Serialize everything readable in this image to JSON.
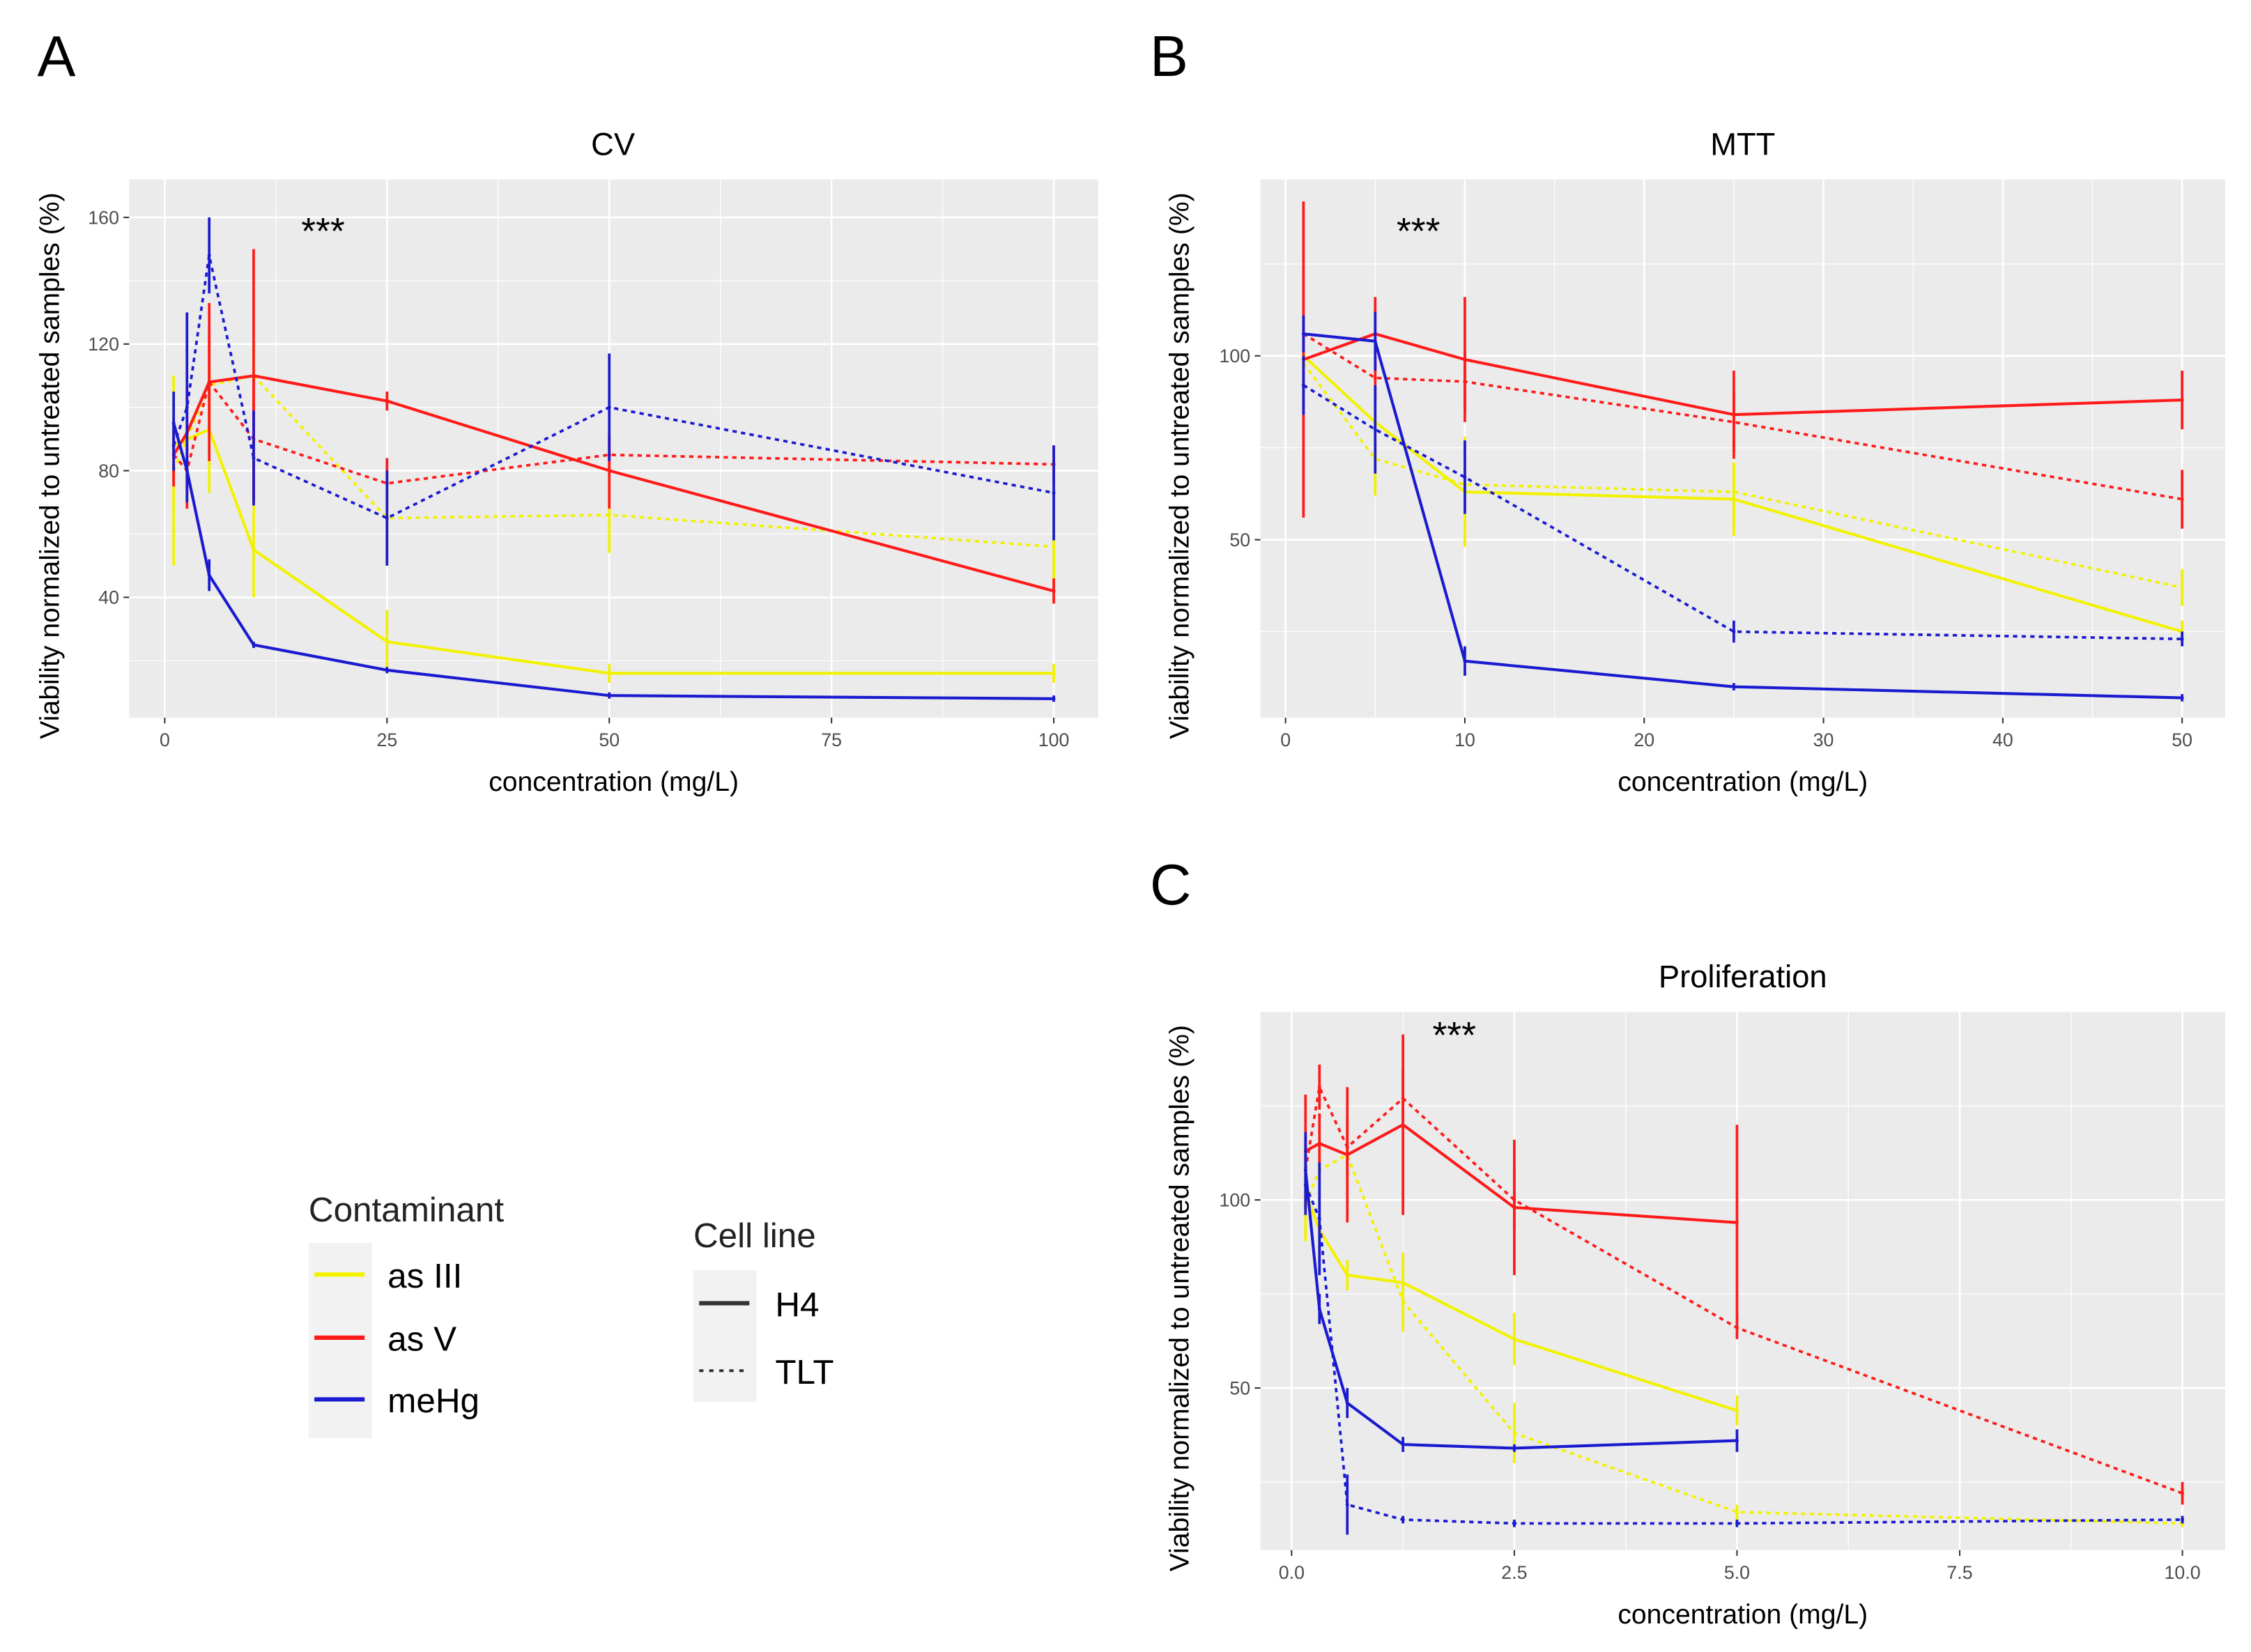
{
  "panel_labels": [
    "A",
    "B",
    "C"
  ],
  "y_axis_label": "Viability normalized to untreated samples (%)",
  "x_axis_label": "concentration (mg/L)",
  "significance": "***",
  "colors": {
    "as III": "#F2F200",
    "as V": "#FF1A1A",
    "meHg": "#1A1AD0",
    "panel_bg": "#EBEBEB",
    "grid": "#FFFFFF"
  },
  "legend": {
    "contaminant_title": "Contaminant",
    "contaminants": [
      "as III",
      "as V",
      "meHg"
    ],
    "cell_line_title": "Cell line",
    "cell_lines": [
      {
        "name": "H4",
        "style": "solid"
      },
      {
        "name": "TLT",
        "style": "dotted"
      }
    ]
  },
  "chart_data": [
    {
      "type": "line",
      "panel": "A",
      "title": "CV",
      "xlabel": "concentration (mg/L)",
      "ylabel": "Viability normalized to untreated samples (%)",
      "xlim": [
        -4,
        105
      ],
      "ylim": [
        2,
        172
      ],
      "xticks": [
        0,
        25,
        50,
        75,
        100
      ],
      "xtick_labels": [
        "0",
        "25",
        "50",
        "75",
        "100"
      ],
      "yticks": [
        40,
        80,
        120,
        160
      ],
      "ytick_labels": [
        "40",
        "80",
        "120",
        "160"
      ],
      "grid": true,
      "annotation": "***",
      "series": [
        {
          "contaminant": "as III",
          "cell_line": "H4",
          "x": [
            1,
            5,
            10,
            25,
            50,
            100
          ],
          "y": [
            88,
            93,
            55,
            26,
            16,
            16
          ],
          "err": [
            20,
            20,
            15,
            10,
            3,
            3
          ]
        },
        {
          "contaminant": "as III",
          "cell_line": "TLT",
          "x": [
            1,
            5,
            10,
            25,
            50,
            100
          ],
          "y": [
            80,
            107,
            110,
            65,
            66,
            56
          ],
          "err": [
            30,
            15,
            10,
            10,
            12,
            12
          ]
        },
        {
          "contaminant": "as V",
          "cell_line": "H4",
          "x": [
            1,
            2.5,
            5,
            10,
            25,
            50,
            100
          ],
          "y": [
            85,
            92,
            108,
            110,
            102,
            80,
            42
          ],
          "err": [
            10,
            15,
            25,
            40,
            3,
            12,
            4
          ]
        },
        {
          "contaminant": "as V",
          "cell_line": "TLT",
          "x": [
            1,
            2.5,
            5,
            10,
            25,
            50,
            100
          ],
          "y": [
            85,
            80,
            108,
            90,
            76,
            85,
            82
          ],
          "err": [
            8,
            12,
            15,
            20,
            8,
            6,
            6
          ]
        },
        {
          "contaminant": "meHg",
          "cell_line": "H4",
          "x": [
            1,
            2.5,
            5,
            10,
            25,
            50,
            100
          ],
          "y": [
            95,
            80,
            47,
            25,
            17,
            9,
            8
          ],
          "err": [
            10,
            5,
            5,
            1,
            1,
            1,
            1
          ]
        },
        {
          "contaminant": "meHg",
          "cell_line": "TLT",
          "x": [
            1,
            2.5,
            5,
            10,
            25,
            50,
            100
          ],
          "y": [
            88,
            100,
            148,
            84,
            65,
            100,
            73
          ],
          "err": [
            8,
            30,
            12,
            15,
            15,
            17,
            15
          ]
        }
      ]
    },
    {
      "type": "line",
      "panel": "B",
      "title": "MTT",
      "xlabel": "concentration (mg/L)",
      "ylabel": "Viability normalized to untreated samples (%)",
      "xlim": [
        -1.4,
        52.4
      ],
      "ylim": [
        1.6,
        148
      ],
      "xticks": [
        0,
        10,
        20,
        30,
        40,
        50
      ],
      "xtick_labels": [
        "0",
        "10",
        "20",
        "30",
        "40",
        "50"
      ],
      "yticks": [
        50,
        100
      ],
      "ytick_labels": [
        "50",
        "100"
      ],
      "grid": true,
      "annotation": "***",
      "series": [
        {
          "contaminant": "as III",
          "cell_line": "H4",
          "x": [
            1,
            5,
            10,
            25,
            50
          ],
          "y": [
            100,
            82,
            63,
            61,
            25
          ],
          "err": [
            8,
            10,
            15,
            10,
            3
          ]
        },
        {
          "contaminant": "as III",
          "cell_line": "TLT",
          "x": [
            1,
            5,
            10,
            25,
            50
          ],
          "y": [
            98,
            72,
            65,
            63,
            37
          ],
          "err": [
            8,
            10,
            12,
            8,
            5
          ]
        },
        {
          "contaminant": "as V",
          "cell_line": "H4",
          "x": [
            1,
            5,
            10,
            25,
            50
          ],
          "y": [
            99,
            106,
            99,
            84,
            88
          ],
          "err": [
            43,
            10,
            17,
            12,
            8
          ]
        },
        {
          "contaminant": "as V",
          "cell_line": "TLT",
          "x": [
            1,
            5,
            10,
            25,
            50
          ],
          "y": [
            106,
            94,
            93,
            82,
            61
          ],
          "err": [
            5,
            6,
            8,
            8,
            8
          ]
        },
        {
          "contaminant": "meHg",
          "cell_line": "H4",
          "x": [
            1,
            5,
            10,
            25,
            50
          ],
          "y": [
            106,
            104,
            17,
            10,
            7
          ],
          "err": [
            5,
            8,
            4,
            1,
            1
          ]
        },
        {
          "contaminant": "meHg",
          "cell_line": "TLT",
          "x": [
            1,
            5,
            10,
            25,
            50
          ],
          "y": [
            92,
            80,
            67,
            25,
            23
          ],
          "err": [
            8,
            12,
            10,
            3,
            2
          ]
        }
      ]
    },
    {
      "type": "line",
      "panel": "C",
      "title": "Proliferation",
      "xlabel": "concentration (mg/L)",
      "ylabel": "Viability normalized to untreated samples (%)",
      "xlim": [
        -0.35,
        10.48
      ],
      "ylim": [
        6.9,
        150
      ],
      "xticks": [
        0,
        2.5,
        5,
        7.5,
        10
      ],
      "xtick_labels": [
        "0.0",
        "2.5",
        "5.0",
        "7.5",
        "10.0"
      ],
      "yticks": [
        50,
        100
      ],
      "ytick_labels": [
        "50",
        "100"
      ],
      "grid": true,
      "annotation": "***",
      "series": [
        {
          "contaminant": "as III",
          "cell_line": "H4",
          "x": [
            0.156,
            0.3125,
            0.625,
            1.25,
            2.5,
            5
          ],
          "y": [
            102,
            92,
            80,
            78,
            63,
            44
          ],
          "err": [
            12,
            8,
            4,
            8,
            7,
            4
          ]
        },
        {
          "contaminant": "as III",
          "cell_line": "TLT",
          "x": [
            0.156,
            0.3125,
            0.625,
            1.25,
            2.5,
            5,
            10
          ],
          "y": [
            99,
            108,
            112,
            73,
            38,
            17,
            14
          ],
          "err": [
            10,
            8,
            8,
            8,
            8,
            2,
            1
          ]
        },
        {
          "contaminant": "as V",
          "cell_line": "H4",
          "x": [
            0.156,
            0.3125,
            0.625,
            1.25,
            2.5,
            5
          ],
          "y": [
            113,
            115,
            112,
            120,
            98,
            94
          ],
          "err": [
            15,
            8,
            18,
            24,
            18,
            26
          ]
        },
        {
          "contaminant": "as V",
          "cell_line": "TLT",
          "x": [
            0.156,
            0.3125,
            0.625,
            1.25,
            2.5,
            5,
            10
          ],
          "y": [
            108,
            130,
            114,
            127,
            100,
            66,
            22
          ],
          "err": [
            10,
            6,
            8,
            8,
            8,
            3,
            3
          ]
        },
        {
          "contaminant": "meHg",
          "cell_line": "H4",
          "x": [
            0.156,
            0.3125,
            0.625,
            1.25,
            2.5,
            5
          ],
          "y": [
            108,
            71,
            46,
            35,
            34,
            36
          ],
          "err": [
            10,
            4,
            4,
            2,
            1,
            3
          ]
        },
        {
          "contaminant": "meHg",
          "cell_line": "TLT",
          "x": [
            0.156,
            0.3125,
            0.625,
            1.25,
            2.5,
            5,
            10
          ],
          "y": [
            104,
            95,
            19,
            15,
            14,
            14,
            15
          ],
          "err": [
            8,
            15,
            8,
            1,
            1,
            1,
            1
          ]
        }
      ]
    }
  ]
}
